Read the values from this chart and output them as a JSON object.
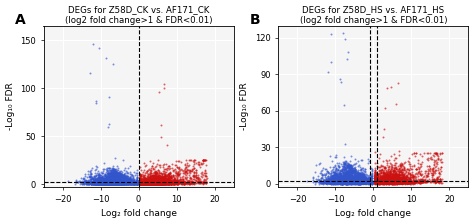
{
  "panel_A": {
    "title_line1": "DEGs for Z58D_CK vs. AF171_CK",
    "title_line2": "(log2 fold change>1 & FDR<0.01)",
    "label": "A",
    "xlim": [
      -25,
      25
    ],
    "ylim": [
      -3,
      165
    ],
    "xticks": [
      -20,
      -10,
      0,
      10,
      20
    ],
    "yticks": [
      0,
      50,
      100,
      150
    ],
    "xlabel": "Log₂ fold change",
    "ylabel": "-Log₁₀ FDR",
    "vlines": [
      0
    ],
    "hline_y": 2,
    "seed": 42
  },
  "panel_B": {
    "title_line1": "DEGs for Z58D_HS vs. AF171_HS",
    "title_line2": "(log2 fold change>1 & FDR<0.01)",
    "label": "B",
    "xlim": [
      -25,
      25
    ],
    "ylim": [
      -3,
      130
    ],
    "xticks": [
      -20,
      -10,
      0,
      10,
      20
    ],
    "yticks": [
      0,
      30,
      60,
      90,
      120
    ],
    "xlabel": "Log₂ fold change",
    "ylabel": "-Log₁₀ FDR",
    "vlines": [
      -1,
      1
    ],
    "hline_y": 2,
    "seed": 7
  },
  "blue_color": "#3355cc",
  "red_color": "#cc1111",
  "gray_color": "#999999",
  "dot_size": 2,
  "alpha": 0.65,
  "background_color": "#f5f5f5",
  "grid_color": "#ffffff",
  "title_fontsize": 6.2,
  "label_fontsize": 10,
  "axis_fontsize": 6.5,
  "tick_fontsize": 6
}
